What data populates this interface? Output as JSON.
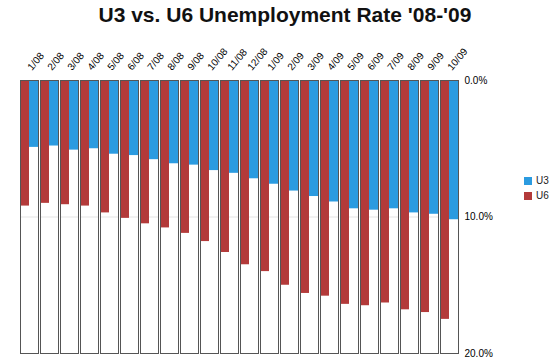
{
  "chart_data": {
    "type": "bar",
    "title": "U3 vs. U6 Unemployment Rate '08-'09",
    "categories": [
      "1/08",
      "2/08",
      "3/08",
      "4/08",
      "5/08",
      "6/08",
      "7/08",
      "8/08",
      "9/08",
      "10/08",
      "11/08",
      "12/08",
      "1/09",
      "2/09",
      "3/09",
      "4/09",
      "5/09",
      "6/09",
      "7/09",
      "8/09",
      "9/09",
      "10/09"
    ],
    "series": [
      {
        "name": "U3",
        "color": "#2b9be0",
        "values": [
          4.9,
          4.8,
          5.1,
          5.0,
          5.4,
          5.5,
          5.8,
          6.1,
          6.2,
          6.6,
          6.8,
          7.2,
          7.6,
          8.1,
          8.5,
          8.9,
          9.4,
          9.5,
          9.4,
          9.7,
          9.8,
          10.2
        ]
      },
      {
        "name": "U6",
        "color": "#b33a3a",
        "values": [
          9.2,
          9.0,
          9.1,
          9.2,
          9.7,
          10.1,
          10.5,
          10.8,
          11.2,
          11.8,
          12.6,
          13.5,
          14.0,
          15.0,
          15.6,
          15.8,
          16.4,
          16.5,
          16.3,
          16.8,
          17.0,
          17.5
        ]
      }
    ],
    "ylim": [
      0,
      20
    ],
    "yticks": [
      {
        "value": 0,
        "label": "0.0%"
      },
      {
        "value": 10,
        "label": "10.0%"
      },
      {
        "value": 20,
        "label": "20.0%"
      }
    ],
    "grid": true,
    "legend": "right"
  }
}
